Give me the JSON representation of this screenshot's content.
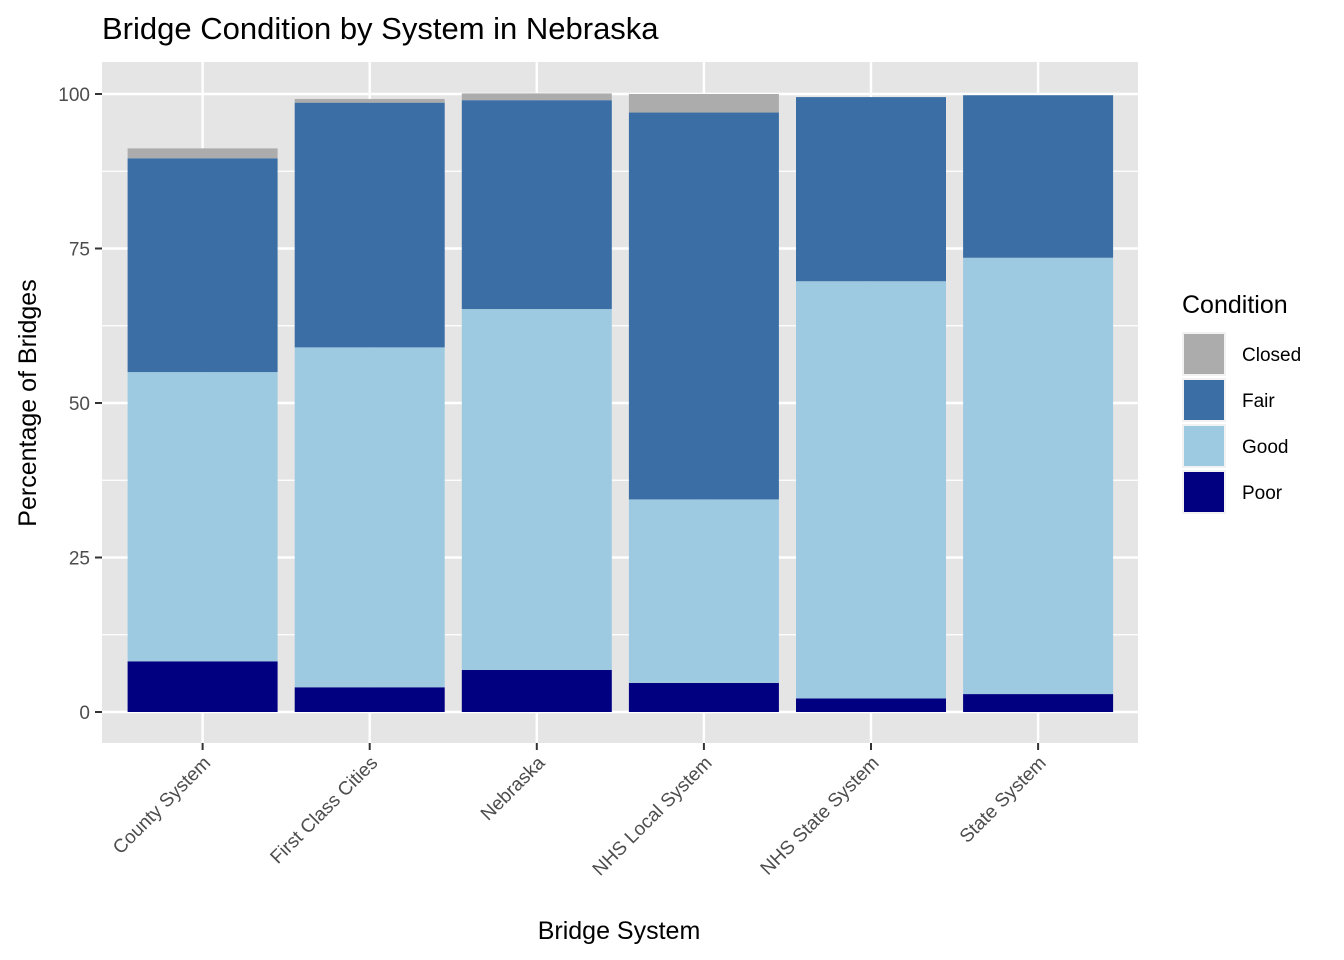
{
  "chart_data": {
    "type": "bar",
    "stacked": true,
    "title": "Bridge Condition by System in Nebraska",
    "xlabel": "Bridge System",
    "ylabel": "Percentage of Bridges",
    "ylim": [
      0,
      100
    ],
    "yticks": [
      "0",
      "25",
      "50",
      "75",
      "100"
    ],
    "ytick_values": [
      0,
      25,
      50,
      75,
      100
    ],
    "grid": true,
    "legend": {
      "title": "Condition",
      "position": "right",
      "entries": [
        "Closed",
        "Fair",
        "Good",
        "Poor"
      ]
    },
    "categories": [
      "County System",
      "First Class Cities",
      "Nebraska",
      "NHS Local System",
      "NHS State System",
      "State System"
    ],
    "stack_order_bottom_to_top": [
      "Poor",
      "Good",
      "Fair",
      "Closed"
    ],
    "series": [
      {
        "name": "Poor",
        "color": "#000080",
        "values": [
          8.2,
          4.0,
          6.8,
          4.7,
          2.2,
          2.9
        ]
      },
      {
        "name": "Good",
        "color": "#9ecae1",
        "values": [
          46.8,
          55.0,
          58.4,
          29.7,
          67.5,
          70.6
        ]
      },
      {
        "name": "Fair",
        "color": "#3a6ea5",
        "values": [
          34.6,
          39.6,
          33.8,
          62.6,
          29.8,
          26.3
        ]
      },
      {
        "name": "Closed",
        "color": "#acacac",
        "values": [
          1.6,
          0.6,
          1.1,
          3.0,
          0.0,
          0.0
        ]
      }
    ]
  }
}
